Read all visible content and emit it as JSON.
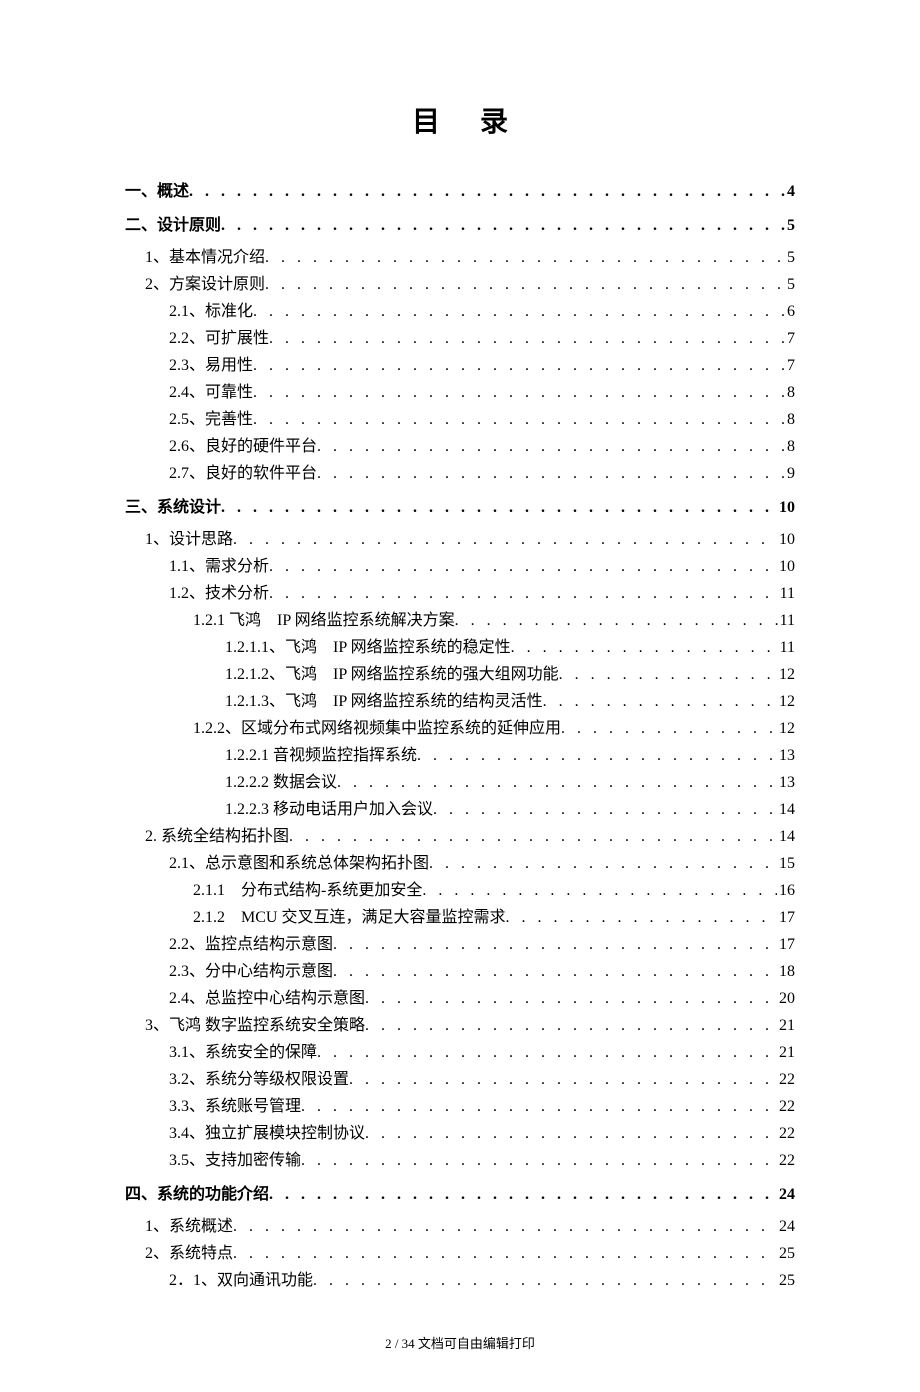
{
  "page": {
    "title": "目录",
    "footer": "2 / 34 文档可自由编辑打印"
  },
  "toc": [
    {
      "level": 0,
      "label": "一、概述",
      "page": "4"
    },
    {
      "level": 0,
      "label": "二、设计原则",
      "page": "5"
    },
    {
      "level": 1,
      "label": "1、基本情况介绍",
      "page": "5"
    },
    {
      "level": 1,
      "label": "2、方案设计原则",
      "page": "5"
    },
    {
      "level": 2,
      "label": "2.1、标准化",
      "page": "6"
    },
    {
      "level": 2,
      "label": "2.2、可扩展性",
      "page": "7"
    },
    {
      "level": 2,
      "label": "2.3、易用性",
      "page": "7"
    },
    {
      "level": 2,
      "label": "2.4、可靠性",
      "page": "8"
    },
    {
      "level": 2,
      "label": "2.5、完善性",
      "page": "8"
    },
    {
      "level": 2,
      "label": "2.6、良好的硬件平台",
      "page": "8"
    },
    {
      "level": 2,
      "label": "2.7、良好的软件平台",
      "page": "9"
    },
    {
      "level": 0,
      "label": "三、系统设计",
      "page": "10"
    },
    {
      "level": 1,
      "label": "1、设计思路",
      "page": "10"
    },
    {
      "level": 2,
      "label": "1.1、需求分析",
      "page": "10"
    },
    {
      "level": 2,
      "label": "1.2、技术分析",
      "page": "11"
    },
    {
      "level": 3,
      "label": "1.2.1 飞鸿　IP 网络监控系统解决方案",
      "page": "11"
    },
    {
      "level": 4,
      "label": "1.2.1.1、飞鸿　IP 网络监控系统的稳定性",
      "page": "11"
    },
    {
      "level": 4,
      "label": "1.2.1.2、飞鸿　IP 网络监控系统的强大组网功能",
      "page": "12"
    },
    {
      "level": 4,
      "label": "1.2.1.3、飞鸿　IP 网络监控系统的结构灵活性",
      "page": "12"
    },
    {
      "level": 3,
      "label": "1.2.2、区域分布式网络视频集中监控系统的延伸应用",
      "page": "12"
    },
    {
      "level": 4,
      "label": "1.2.2.1 音视频监控指挥系统",
      "page": "13"
    },
    {
      "level": 4,
      "label": "1.2.2.2 数据会议",
      "page": "13"
    },
    {
      "level": 4,
      "label": "1.2.2.3 移动电话用户加入会议",
      "page": "14"
    },
    {
      "level": 1,
      "label": "2. 系统全结构拓扑图",
      "page": "14"
    },
    {
      "level": 2,
      "label": "2.1、总示意图和系统总体架构拓扑图",
      "page": "15"
    },
    {
      "level": 3,
      "label": "2.1.1　分布式结构-系统更加安全",
      "page": "16"
    },
    {
      "level": 3,
      "label": "2.1.2　MCU 交叉互连，满足大容量监控需求",
      "page": "17"
    },
    {
      "level": 2,
      "label": "2.2、监控点结构示意图",
      "page": "17"
    },
    {
      "level": 2,
      "label": "2.3、分中心结构示意图",
      "page": "18"
    },
    {
      "level": 2,
      "label": "2.4、总监控中心结构示意图",
      "page": "20"
    },
    {
      "level": 1,
      "label": "3、飞鸿 数字监控系统安全策略",
      "page": "21"
    },
    {
      "level": 2,
      "label": "3.1、系统安全的保障",
      "page": "21"
    },
    {
      "level": 2,
      "label": "3.2、系统分等级权限设置",
      "page": "22"
    },
    {
      "level": 2,
      "label": "3.3、系统账号管理",
      "page": "22"
    },
    {
      "level": 2,
      "label": "3.4、独立扩展模块控制协议",
      "page": "22"
    },
    {
      "level": 2,
      "label": "3.5、支持加密传输",
      "page": "22"
    },
    {
      "level": 0,
      "label": "四、系统的功能介绍",
      "page": "24"
    },
    {
      "level": 1,
      "label": "1、系统概述",
      "page": "24"
    },
    {
      "level": 1,
      "label": "2、系统特点",
      "page": "25"
    },
    {
      "level": 2,
      "label": "2．1、双向通讯功能",
      "page": "25"
    }
  ]
}
